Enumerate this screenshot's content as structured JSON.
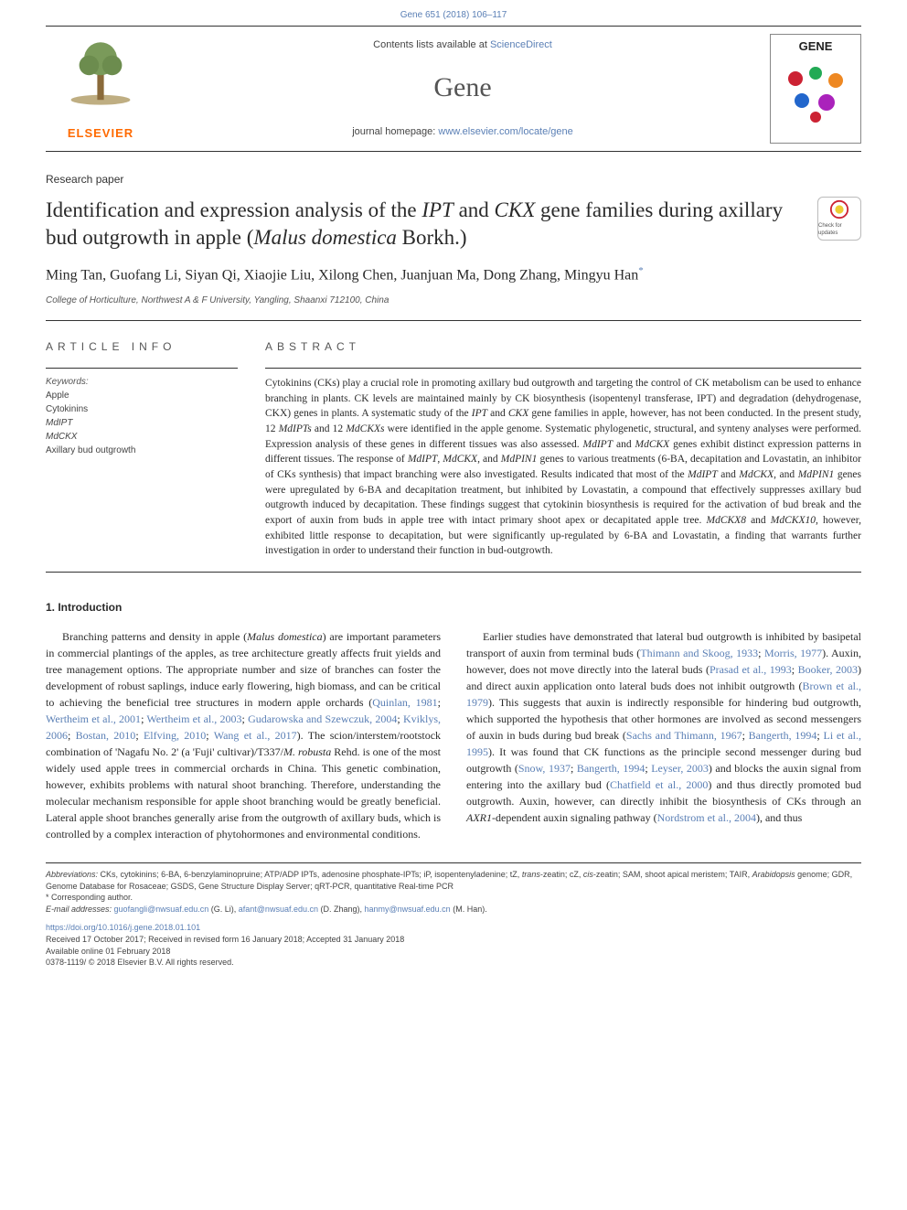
{
  "colors": {
    "link": "#5a7fb5",
    "text": "#2a2a2a",
    "muted": "#555555",
    "elsevier_orange": "#ff6a00",
    "rule": "#333333",
    "background": "#ffffff"
  },
  "typography": {
    "body_font": "Georgia, serif",
    "ui_font": "Arial, sans-serif",
    "title_size_pt": 23,
    "journal_title_size_pt": 30,
    "body_size_pt": 12,
    "abstract_size_pt": 11.5,
    "footnote_size_pt": 9
  },
  "running_header": "Gene 651 (2018) 106–117",
  "masthead": {
    "contents_prefix": "Contents lists available at ",
    "contents_link": "ScienceDirect",
    "journal_title": "Gene",
    "homepage_prefix": "journal homepage: ",
    "homepage_link": "www.elsevier.com/locate/gene",
    "publisher_label": "ELSEVIER",
    "cover_label": "GENE"
  },
  "article": {
    "type": "Research paper",
    "title_plain_before": "Identification and expression analysis of the ",
    "title_ital1": "IPT",
    "title_mid1": " and ",
    "title_ital2": "CKX",
    "title_mid2": " gene families during axillary bud outgrowth in apple (",
    "title_ital3": "Malus domestica",
    "title_after": " Borkh.)",
    "crossmark_label": "Check for updates",
    "authors_line": "Ming Tan, Guofang Li, Siyan Qi, Xiaojie Liu, Xilong Chen, Juanjuan Ma, Dong Zhang, Mingyu Han",
    "corr_marker": "*",
    "affiliation": "College of Horticulture, Northwest A & F University, Yangling, Shaanxi 712100, China"
  },
  "article_info": {
    "heading": "ARTICLE INFO",
    "kw_label": "Keywords:",
    "keywords": [
      {
        "text": "Apple",
        "italic": false
      },
      {
        "text": "Cytokinins",
        "italic": false
      },
      {
        "text": "MdIPT",
        "italic": true
      },
      {
        "text": "MdCKX",
        "italic": true
      },
      {
        "text": "Axillary bud outgrowth",
        "italic": false
      }
    ]
  },
  "abstract": {
    "heading": "ABSTRACT",
    "text_p1": "Cytokinins (CKs) play a crucial role in promoting axillary bud outgrowth and targeting the control of CK metabolism can be used to enhance branching in plants. CK levels are maintained mainly by CK biosynthesis (isopentenyl transferase, IPT) and degradation (dehydrogenase, CKX) genes in plants. A systematic study of the ",
    "text_i1": "IPT",
    "text_p2": " and ",
    "text_i2": "CKX",
    "text_p3": " gene families in apple, however, has not been conducted. In the present study, 12 ",
    "text_i3": "MdIPTs",
    "text_p4": " and 12 ",
    "text_i4": "MdCKXs",
    "text_p5": " were identified in the apple genome. Systematic phylogenetic, structural, and synteny analyses were performed. Expression analysis of these genes in different tissues was also assessed. ",
    "text_i5": "MdIPT",
    "text_p6": " and ",
    "text_i6": "MdCKX",
    "text_p7": " genes exhibit distinct expression patterns in different tissues. The response of ",
    "text_i7": "MdIPT",
    "text_p8": ", ",
    "text_i8": "MdCKX",
    "text_p9": ", and ",
    "text_i9": "MdPIN1",
    "text_p10": " genes to various treatments (6-BA, decapitation and Lovastatin, an inhibitor of CKs synthesis) that impact branching were also investigated. Results indicated that most of the ",
    "text_i10": "MdIPT",
    "text_p11": " and ",
    "text_i11": "MdCKX",
    "text_p12": ", and ",
    "text_i12": "MdPIN1",
    "text_p13": " genes were upregulated by 6-BA and decapitation treatment, but inhibited by Lovastatin, a compound that effectively suppresses axillary bud outgrowth induced by decapitation. These findings suggest that cytokinin biosynthesis is required for the activation of bud break and the export of auxin from buds in apple tree with intact primary shoot apex or decapitated apple tree. ",
    "text_i13": "MdCKX8",
    "text_p14": " and ",
    "text_i14": "MdCKX10",
    "text_p15": ", however, exhibited little response to decapitation, but were significantly up-regulated by 6-BA and Lovastatin, a finding that warrants further investigation in order to understand their function in bud-outgrowth."
  },
  "body": {
    "heading": "1. Introduction",
    "p1_a": "Branching patterns and density in apple (",
    "p1_i1": "Malus domestica",
    "p1_b": ") are important parameters in commercial plantings of the apples, as tree architecture greatly affects fruit yields and tree management options. The appropriate number and size of branches can foster the development of robust saplings, induce early flowering, high biomass, and can be critical to achieving the beneficial tree structures in modern apple orchards (",
    "refs1": [
      "Quinlan, 1981",
      "Wertheim et al., 2001",
      "Wertheim et al., 2003",
      "Gudarowska and Szewczuk, 2004",
      "Kviklys, 2006",
      "Bostan, 2010",
      "Elfving, 2010",
      "Wang et al., 2017"
    ],
    "p1_c": "). The scion/interstem/rootstock combination of 'Nagafu No. 2' (a 'Fuji' cultivar)/T337/",
    "p1_i2": "M. robusta",
    "p1_d": " Rehd. is one of the most widely used apple trees in commercial orchards in China. This genetic combination, however, exhibits problems with natural shoot branching. Therefore, understanding the molecular mechanism responsible for apple shoot branching would be greatly beneficial. Lateral apple shoot branches generally arise from the outgrowth of axillary buds, which is controlled by a complex interaction of phytohormones and environmental conditions.",
    "p2_a": "Earlier studies have demonstrated that lateral bud outgrowth is inhibited by basipetal transport of auxin from terminal buds (",
    "refs2": [
      "Thimann and Skoog, 1933",
      "Morris, 1977"
    ],
    "p2_b": "). Auxin, however, does not move directly into the lateral buds (",
    "refs3": [
      "Prasad et al., 1993",
      "Booker, 2003"
    ],
    "p2_c": ") and direct auxin application onto lateral buds does not inhibit outgrowth (",
    "refs4": [
      "Brown et al., 1979"
    ],
    "p2_d": "). This suggests that auxin is indirectly responsible for hindering bud outgrowth, which supported the hypothesis that other hormones are involved as second messengers of auxin in buds during bud break (",
    "refs5": [
      "Sachs and Thimann, 1967",
      "Bangerth, 1994",
      "Li et al., 1995"
    ],
    "p2_e": "). It was found that CK functions as the principle second messenger during bud outgrowth (",
    "refs6": [
      "Snow, 1937",
      "Bangerth, 1994",
      "Leyser, 2003"
    ],
    "p2_f": ") and blocks the auxin signal from entering into the axillary bud (",
    "refs7": [
      "Chatfield et al., 2000"
    ],
    "p2_g": ") and thus directly promoted bud outgrowth. Auxin, however, can directly inhibit the biosynthesis of CKs through an ",
    "p2_i1": "AXR1",
    "p2_h": "-dependent auxin signaling pathway (",
    "refs8": [
      "Nordstrom et al., 2004"
    ],
    "p2_i": "), and thus"
  },
  "footnotes": {
    "abbr_label": "Abbreviations:",
    "abbr_text": " CKs, cytokinins; 6-BA, 6-benzylaminopruine; ATP/ADP IPTs, adenosine phosphate-IPTs; iP, isopentenyladenine; tZ, ",
    "abbr_i1": "trans",
    "abbr_text2": "-zeatin; cZ, ",
    "abbr_i2": "cis",
    "abbr_text3": "-zeatin; SAM, shoot apical meristem; TAIR, ",
    "abbr_i3": "Arabidopsis",
    "abbr_text4": " genome; GDR, Genome Database for Rosaceae; GSDS, Gene Structure Display Server; qRT-PCR, quantitative Real-time PCR",
    "corr_label": "* Corresponding author.",
    "email_label": "E-mail addresses:",
    "emails": [
      {
        "addr": "guofangli@nwsuaf.edu.cn",
        "name": "(G. Li)"
      },
      {
        "addr": "afant@nwsuaf.edu.cn",
        "name": "(D. Zhang)"
      },
      {
        "addr": "hanmy@nwsuaf.edu.cn",
        "name": "(M. Han)"
      }
    ]
  },
  "doi": "https://doi.org/10.1016/j.gene.2018.01.101",
  "history": "Received 17 October 2017; Received in revised form 16 January 2018; Accepted 31 January 2018",
  "online": "Available online 01 February 2018",
  "copyright": "0378-1119/ © 2018 Elsevier B.V. All rights reserved."
}
